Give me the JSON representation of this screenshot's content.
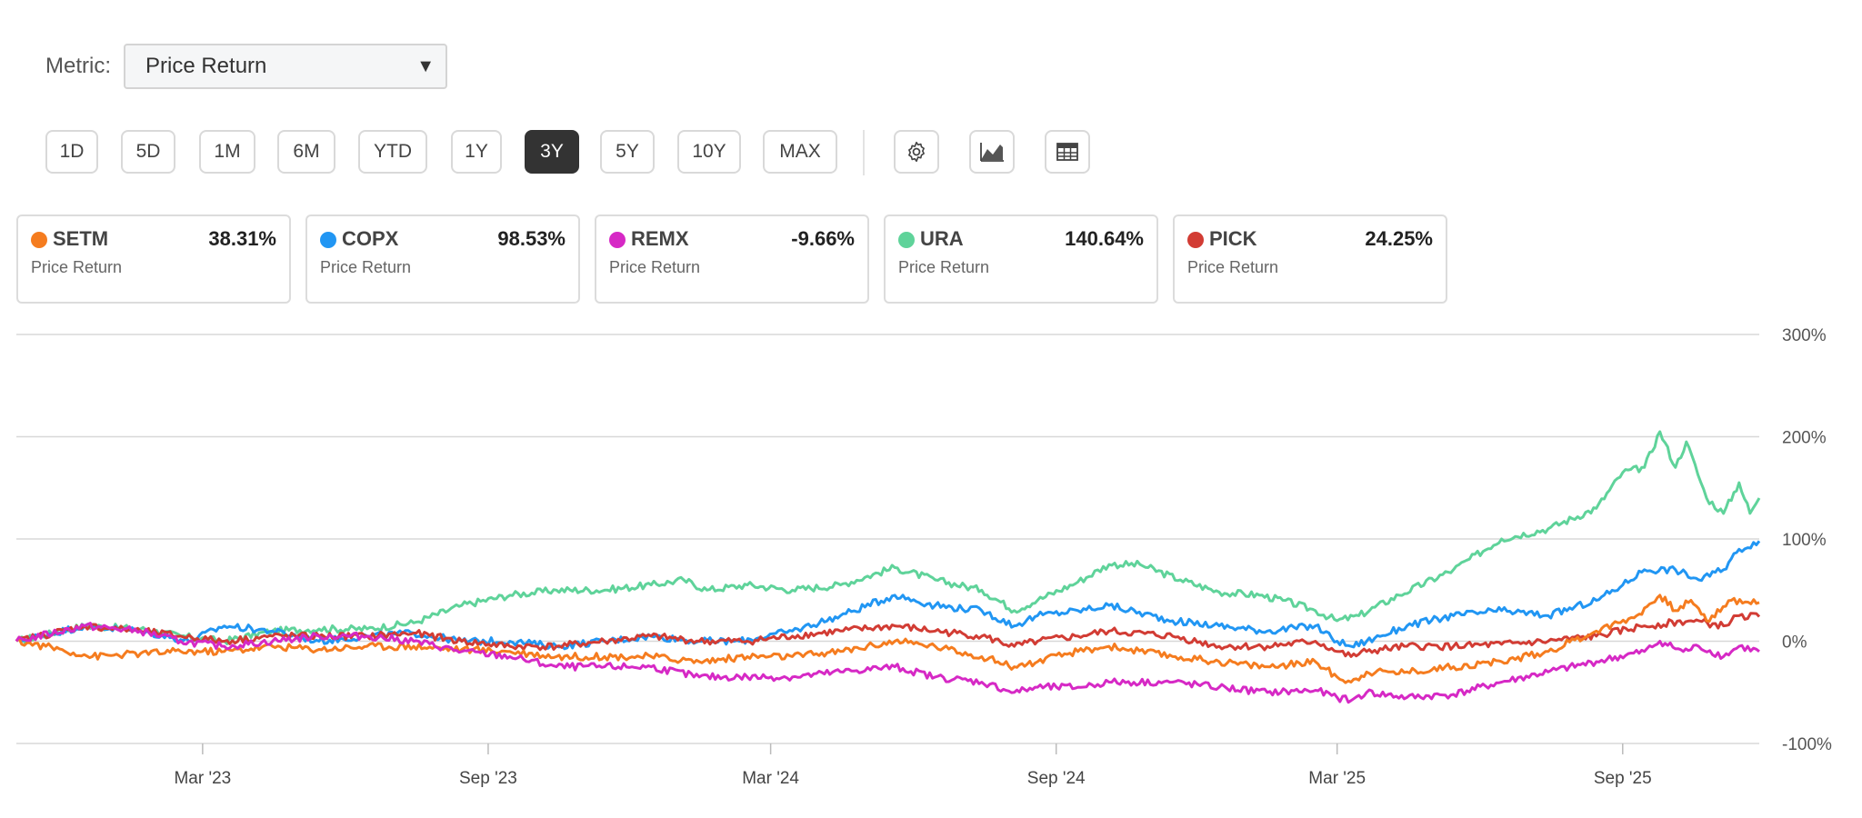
{
  "metric": {
    "label": "Metric:",
    "selected": "Price Return"
  },
  "ranges": [
    {
      "label": "1D",
      "active": false
    },
    {
      "label": "5D",
      "active": false
    },
    {
      "label": "1M",
      "active": false
    },
    {
      "label": "6M",
      "active": false
    },
    {
      "label": "YTD",
      "active": false
    },
    {
      "label": "1Y",
      "active": false
    },
    {
      "label": "3Y",
      "active": true
    },
    {
      "label": "5Y",
      "active": false
    },
    {
      "label": "10Y",
      "active": false
    },
    {
      "label": "MAX",
      "active": false
    }
  ],
  "tools": [
    {
      "icon": "gear-icon"
    },
    {
      "icon": "area-chart-icon"
    },
    {
      "icon": "table-icon"
    }
  ],
  "cards": [
    {
      "ticker": "SETM",
      "value": "38.31%",
      "sub": "Price Return",
      "color": "#f57c1f"
    },
    {
      "ticker": "COPX",
      "value": "98.53%",
      "sub": "Price Return",
      "color": "#2196f3"
    },
    {
      "ticker": "REMX",
      "value": "-9.66%",
      "sub": "Price Return",
      "color": "#d629c5"
    },
    {
      "ticker": "URA",
      "value": "140.64%",
      "sub": "Price Return",
      "color": "#5fd39a"
    },
    {
      "ticker": "PICK",
      "value": "24.25%",
      "sub": "Price Return",
      "color": "#d23c34"
    }
  ],
  "chart_data": {
    "type": "line",
    "y_ticks": [
      "300%",
      "200%",
      "100%",
      "0%",
      "-100%"
    ],
    "y_tick_values": [
      300,
      200,
      100,
      0,
      -100
    ],
    "ylim": [
      -100,
      300
    ],
    "x_ticks": [
      "Mar '23",
      "Sep '23",
      "Mar '24",
      "Sep '24",
      "Mar '25",
      "Sep '25"
    ],
    "x_tick_dates": [
      "2023-03-01",
      "2023-09-01",
      "2024-03-01",
      "2024-09-01",
      "2025-03-01",
      "2025-09-01"
    ],
    "x_range": [
      "2022-11-01",
      "2025-11-28"
    ],
    "grid": true,
    "series": [
      {
        "name": "URA",
        "color": "#5fd39a",
        "points": [
          [
            "2022-11-01",
            0
          ],
          [
            "2022-12-15",
            15
          ],
          [
            "2023-01-20",
            12
          ],
          [
            "2023-02-15",
            5
          ],
          [
            "2023-03-15",
            0
          ],
          [
            "2023-04-15",
            10
          ],
          [
            "2023-05-15",
            12
          ],
          [
            "2023-06-15",
            12
          ],
          [
            "2023-07-15",
            18
          ],
          [
            "2023-08-15",
            35
          ],
          [
            "2023-09-15",
            45
          ],
          [
            "2023-10-15",
            50
          ],
          [
            "2023-11-15",
            50
          ],
          [
            "2023-12-15",
            55
          ],
          [
            "2024-01-05",
            60
          ],
          [
            "2024-01-20",
            50
          ],
          [
            "2024-02-15",
            55
          ],
          [
            "2024-03-15",
            50
          ],
          [
            "2024-04-15",
            55
          ],
          [
            "2024-05-20",
            72
          ],
          [
            "2024-06-15",
            60
          ],
          [
            "2024-07-15",
            50
          ],
          [
            "2024-08-05",
            30
          ],
          [
            "2024-08-20",
            40
          ],
          [
            "2024-09-15",
            58
          ],
          [
            "2024-10-05",
            75
          ],
          [
            "2024-10-25",
            75
          ],
          [
            "2024-11-20",
            60
          ],
          [
            "2024-12-15",
            48
          ],
          [
            "2025-01-10",
            45
          ],
          [
            "2025-01-25",
            40
          ],
          [
            "2025-02-15",
            30
          ],
          [
            "2025-03-01",
            20
          ],
          [
            "2025-03-15",
            25
          ],
          [
            "2025-04-10",
            45
          ],
          [
            "2025-05-15",
            70
          ],
          [
            "2025-06-15",
            100
          ],
          [
            "2025-07-15",
            110
          ],
          [
            "2025-08-15",
            130
          ],
          [
            "2025-09-01",
            165
          ],
          [
            "2025-09-15",
            170
          ],
          [
            "2025-09-25",
            205
          ],
          [
            "2025-10-05",
            170
          ],
          [
            "2025-10-12",
            195
          ],
          [
            "2025-10-25",
            140
          ],
          [
            "2025-11-05",
            125
          ],
          [
            "2025-11-15",
            155
          ],
          [
            "2025-11-22",
            125
          ],
          [
            "2025-11-28",
            140
          ]
        ]
      },
      {
        "name": "COPX",
        "color": "#2196f3",
        "points": [
          [
            "2022-11-01",
            0
          ],
          [
            "2022-12-15",
            15
          ],
          [
            "2023-01-20",
            10
          ],
          [
            "2023-02-20",
            0
          ],
          [
            "2023-03-15",
            15
          ],
          [
            "2023-04-15",
            10
          ],
          [
            "2023-05-15",
            0
          ],
          [
            "2023-06-15",
            5
          ],
          [
            "2023-07-15",
            8
          ],
          [
            "2023-08-15",
            0
          ],
          [
            "2023-09-15",
            0
          ],
          [
            "2023-10-15",
            -5
          ],
          [
            "2023-11-15",
            0
          ],
          [
            "2023-12-15",
            5
          ],
          [
            "2024-01-15",
            0
          ],
          [
            "2024-02-10",
            0
          ],
          [
            "2024-03-15",
            10
          ],
          [
            "2024-04-15",
            25
          ],
          [
            "2024-05-20",
            45
          ],
          [
            "2024-06-15",
            35
          ],
          [
            "2024-07-15",
            30
          ],
          [
            "2024-08-05",
            15
          ],
          [
            "2024-08-20",
            25
          ],
          [
            "2024-09-15",
            30
          ],
          [
            "2024-10-05",
            35
          ],
          [
            "2024-11-15",
            20
          ],
          [
            "2024-12-15",
            15
          ],
          [
            "2025-01-15",
            10
          ],
          [
            "2025-02-15",
            15
          ],
          [
            "2025-03-01",
            0
          ],
          [
            "2025-03-10",
            -5
          ],
          [
            "2025-03-20",
            0
          ],
          [
            "2025-04-15",
            15
          ],
          [
            "2025-05-15",
            25
          ],
          [
            "2025-06-15",
            30
          ],
          [
            "2025-07-15",
            25
          ],
          [
            "2025-08-15",
            40
          ],
          [
            "2025-09-01",
            55
          ],
          [
            "2025-09-15",
            70
          ],
          [
            "2025-10-05",
            70
          ],
          [
            "2025-10-20",
            60
          ],
          [
            "2025-11-05",
            70
          ],
          [
            "2025-11-15",
            90
          ],
          [
            "2025-11-28",
            98
          ]
        ]
      },
      {
        "name": "PICK",
        "color": "#d23c34",
        "points": [
          [
            "2022-11-01",
            0
          ],
          [
            "2022-12-15",
            15
          ],
          [
            "2023-01-20",
            10
          ],
          [
            "2023-02-15",
            5
          ],
          [
            "2023-03-15",
            0
          ],
          [
            "2023-04-15",
            5
          ],
          [
            "2023-05-15",
            5
          ],
          [
            "2023-06-15",
            5
          ],
          [
            "2023-07-15",
            8
          ],
          [
            "2023-08-15",
            0
          ],
          [
            "2023-09-15",
            -5
          ],
          [
            "2023-10-15",
            -5
          ],
          [
            "2023-11-15",
            0
          ],
          [
            "2023-12-15",
            5
          ],
          [
            "2024-01-15",
            0
          ],
          [
            "2024-02-15",
            0
          ],
          [
            "2024-03-15",
            5
          ],
          [
            "2024-04-15",
            10
          ],
          [
            "2024-05-20",
            15
          ],
          [
            "2024-06-15",
            10
          ],
          [
            "2024-07-15",
            5
          ],
          [
            "2024-08-05",
            -5
          ],
          [
            "2024-08-20",
            0
          ],
          [
            "2024-09-15",
            5
          ],
          [
            "2024-10-05",
            10
          ],
          [
            "2024-11-15",
            5
          ],
          [
            "2024-12-15",
            -5
          ],
          [
            "2025-01-15",
            -5
          ],
          [
            "2025-02-15",
            0
          ],
          [
            "2025-03-01",
            -10
          ],
          [
            "2025-03-10",
            -15
          ],
          [
            "2025-03-20",
            -10
          ],
          [
            "2025-04-15",
            -5
          ],
          [
            "2025-05-15",
            -5
          ],
          [
            "2025-06-15",
            -3
          ],
          [
            "2025-07-15",
            0
          ],
          [
            "2025-08-15",
            5
          ],
          [
            "2025-09-15",
            15
          ],
          [
            "2025-10-15",
            20
          ],
          [
            "2025-11-05",
            15
          ],
          [
            "2025-11-15",
            25
          ],
          [
            "2025-11-28",
            24
          ]
        ]
      },
      {
        "name": "SETM",
        "color": "#f57c1f",
        "points": [
          [
            "2022-11-01",
            0
          ],
          [
            "2022-11-20",
            -5
          ],
          [
            "2022-12-20",
            -15
          ],
          [
            "2023-01-20",
            -12
          ],
          [
            "2023-02-15",
            -10
          ],
          [
            "2023-03-15",
            -10
          ],
          [
            "2023-04-15",
            -5
          ],
          [
            "2023-05-15",
            -8
          ],
          [
            "2023-06-15",
            -5
          ],
          [
            "2023-07-15",
            -5
          ],
          [
            "2023-08-15",
            -8
          ],
          [
            "2023-09-15",
            -10
          ],
          [
            "2023-10-15",
            -15
          ],
          [
            "2023-11-15",
            -15
          ],
          [
            "2023-12-15",
            -15
          ],
          [
            "2024-01-15",
            -20
          ],
          [
            "2024-02-15",
            -15
          ],
          [
            "2024-03-15",
            -15
          ],
          [
            "2024-04-15",
            -10
          ],
          [
            "2024-05-20",
            0
          ],
          [
            "2024-06-15",
            -5
          ],
          [
            "2024-07-15",
            -15
          ],
          [
            "2024-08-05",
            -25
          ],
          [
            "2024-08-20",
            -20
          ],
          [
            "2024-09-15",
            -10
          ],
          [
            "2024-10-05",
            -5
          ],
          [
            "2024-11-15",
            -15
          ],
          [
            "2024-12-15",
            -20
          ],
          [
            "2025-01-15",
            -25
          ],
          [
            "2025-02-15",
            -20
          ],
          [
            "2025-03-01",
            -35
          ],
          [
            "2025-03-10",
            -40
          ],
          [
            "2025-03-20",
            -30
          ],
          [
            "2025-04-15",
            -30
          ],
          [
            "2025-05-15",
            -25
          ],
          [
            "2025-06-15",
            -20
          ],
          [
            "2025-07-15",
            -10
          ],
          [
            "2025-08-15",
            10
          ],
          [
            "2025-09-10",
            25
          ],
          [
            "2025-09-25",
            45
          ],
          [
            "2025-10-05",
            30
          ],
          [
            "2025-10-15",
            40
          ],
          [
            "2025-10-25",
            20
          ],
          [
            "2025-11-10",
            40
          ],
          [
            "2025-11-28",
            38
          ]
        ]
      },
      {
        "name": "REMX",
        "color": "#d629c5",
        "points": [
          [
            "2022-11-01",
            0
          ],
          [
            "2022-12-15",
            15
          ],
          [
            "2023-01-20",
            10
          ],
          [
            "2023-02-15",
            0
          ],
          [
            "2023-03-15",
            -5
          ],
          [
            "2023-04-15",
            0
          ],
          [
            "2023-05-15",
            5
          ],
          [
            "2023-06-15",
            5
          ],
          [
            "2023-07-15",
            0
          ],
          [
            "2023-08-15",
            -10
          ],
          [
            "2023-09-15",
            -15
          ],
          [
            "2023-10-15",
            -25
          ],
          [
            "2023-11-15",
            -25
          ],
          [
            "2023-12-15",
            -25
          ],
          [
            "2024-01-15",
            -35
          ],
          [
            "2024-02-15",
            -35
          ],
          [
            "2024-03-15",
            -35
          ],
          [
            "2024-04-15",
            -30
          ],
          [
            "2024-05-20",
            -25
          ],
          [
            "2024-06-15",
            -35
          ],
          [
            "2024-07-15",
            -40
          ],
          [
            "2024-08-05",
            -50
          ],
          [
            "2024-08-20",
            -45
          ],
          [
            "2024-09-15",
            -45
          ],
          [
            "2024-10-05",
            -40
          ],
          [
            "2024-11-15",
            -40
          ],
          [
            "2024-12-15",
            -45
          ],
          [
            "2025-01-15",
            -50
          ],
          [
            "2025-02-15",
            -48
          ],
          [
            "2025-03-01",
            -55
          ],
          [
            "2025-03-10",
            -58
          ],
          [
            "2025-03-20",
            -50
          ],
          [
            "2025-04-15",
            -55
          ],
          [
            "2025-05-15",
            -52
          ],
          [
            "2025-06-15",
            -40
          ],
          [
            "2025-07-15",
            -30
          ],
          [
            "2025-08-15",
            -20
          ],
          [
            "2025-09-15",
            -10
          ],
          [
            "2025-09-25",
            0
          ],
          [
            "2025-10-10",
            -10
          ],
          [
            "2025-10-20",
            -5
          ],
          [
            "2025-11-05",
            -15
          ],
          [
            "2025-11-15",
            -5
          ],
          [
            "2025-11-28",
            -10
          ]
        ]
      }
    ]
  }
}
